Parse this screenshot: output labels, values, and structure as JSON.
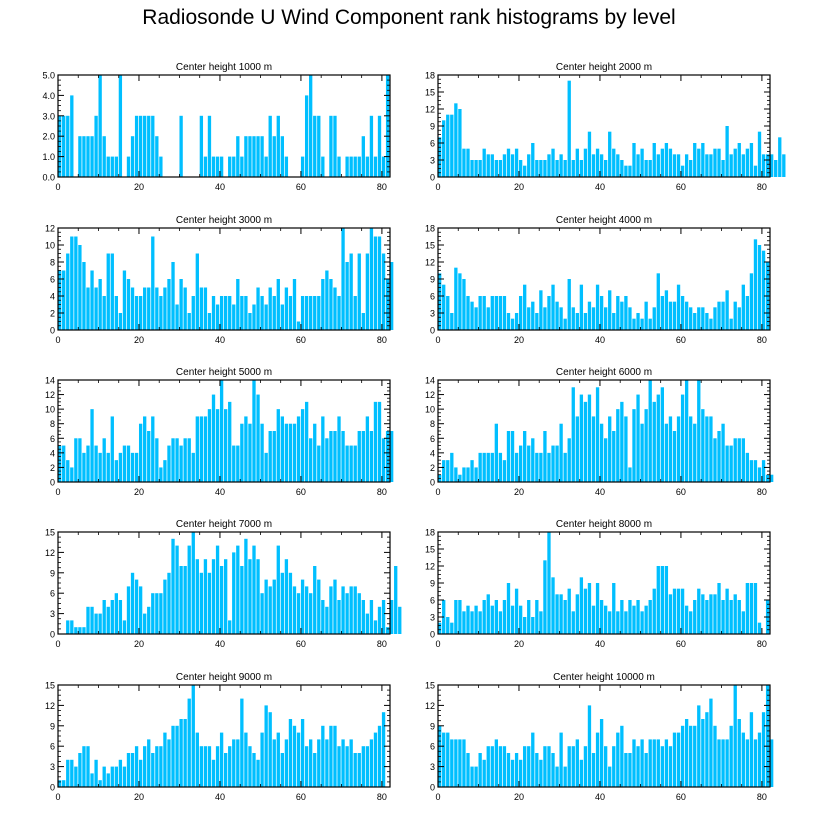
{
  "title": "Radiosonde U Wind Component rank histograms by level",
  "bar_color": "#00bfff",
  "chart_data": [
    {
      "type": "bar",
      "title": "Center height 1000 m",
      "xlim": [
        0,
        82
      ],
      "ylim": [
        0,
        5
      ],
      "yticks": [
        0,
        1,
        2,
        3,
        4,
        5
      ],
      "ytick_labels": [
        "0.0",
        "1.0",
        "2.0",
        "3.0",
        "4.0",
        "5.0"
      ],
      "xticks": [
        0,
        20,
        40,
        60,
        80
      ],
      "values": [
        3,
        3,
        3,
        4,
        0,
        2,
        2,
        2,
        2,
        3,
        5,
        2,
        1,
        1,
        1,
        5,
        0,
        1,
        2,
        3,
        3,
        3,
        3,
        3,
        2,
        1,
        0,
        0,
        0,
        0,
        3,
        0,
        0,
        0,
        0,
        3,
        1,
        3,
        1,
        1,
        1,
        0,
        1,
        1,
        2,
        1,
        2,
        2,
        2,
        2,
        2,
        1,
        3,
        2,
        3,
        2,
        1,
        0,
        0,
        0,
        1,
        4,
        5,
        3,
        3,
        1,
        0,
        3,
        3,
        1,
        0,
        1,
        1,
        1,
        1,
        2,
        1,
        3,
        1,
        3,
        1,
        5
      ]
    },
    {
      "type": "bar",
      "title": "Center height 2000 m",
      "xlim": [
        0,
        82
      ],
      "ylim": [
        0,
        18
      ],
      "yticks": [
        0,
        3,
        6,
        9,
        12,
        15,
        18
      ],
      "ytick_labels": [
        "0",
        "3",
        "6",
        "9",
        "12",
        "15",
        "18"
      ],
      "xticks": [
        0,
        20,
        40,
        60,
        80
      ],
      "values": [
        7,
        10,
        11,
        11,
        13,
        12,
        5,
        5,
        3,
        3,
        3,
        5,
        4,
        4,
        3,
        3,
        4,
        5,
        4,
        5,
        3,
        2,
        4,
        6,
        3,
        3,
        3,
        4,
        5,
        3,
        4,
        3,
        17,
        3,
        5,
        3,
        5,
        8,
        4,
        5,
        4,
        3,
        8,
        5,
        4,
        3,
        2,
        2,
        6,
        4,
        5,
        3,
        3,
        6,
        4,
        5,
        6,
        5,
        4,
        4,
        2,
        4,
        3,
        6,
        5,
        6,
        4,
        4,
        5,
        5,
        3,
        9,
        4,
        5,
        6,
        4,
        5,
        6,
        2,
        8,
        4,
        4,
        4,
        3,
        7,
        4
      ]
    },
    {
      "type": "bar",
      "title": "Center height 3000 m",
      "xlim": [
        0,
        82
      ],
      "ylim": [
        0,
        12
      ],
      "yticks": [
        0,
        2,
        4,
        6,
        8,
        10,
        12
      ],
      "ytick_labels": [
        "0",
        "2",
        "4",
        "6",
        "8",
        "10",
        "12"
      ],
      "xticks": [
        0,
        20,
        40,
        60,
        80
      ],
      "values": [
        7,
        7,
        9,
        11,
        11,
        10,
        8,
        5,
        7,
        5,
        6,
        4,
        9,
        9,
        4,
        2,
        7,
        6,
        5,
        4,
        4,
        5,
        5,
        11,
        5,
        4,
        5,
        6,
        8,
        3,
        6,
        5,
        2,
        4,
        9,
        5,
        5,
        2,
        4,
        3,
        4,
        4,
        4,
        3,
        6,
        4,
        4,
        2,
        3,
        5,
        4,
        3,
        5,
        4,
        6,
        3,
        5,
        4,
        6,
        1,
        4,
        4,
        4,
        4,
        4,
        6,
        7,
        6,
        5,
        4,
        12,
        8,
        9,
        4,
        9,
        2,
        9,
        12,
        11,
        11,
        9,
        6,
        8
      ]
    },
    {
      "type": "bar",
      "title": "Center height 4000 m",
      "xlim": [
        0,
        82
      ],
      "ylim": [
        0,
        18
      ],
      "yticks": [
        0,
        3,
        6,
        9,
        12,
        15,
        18
      ],
      "ytick_labels": [
        "0",
        "3",
        "6",
        "9",
        "12",
        "15",
        "18"
      ],
      "xticks": [
        0,
        20,
        40,
        60,
        80
      ],
      "values": [
        10,
        8,
        6,
        3,
        11,
        10,
        9,
        6,
        5,
        4,
        6,
        6,
        4,
        6,
        6,
        6,
        6,
        3,
        2,
        3,
        6,
        8,
        4,
        5,
        3,
        7,
        4,
        6,
        8,
        5,
        4,
        2,
        9,
        4,
        3,
        8,
        3,
        5,
        4,
        8,
        6,
        4,
        7,
        3,
        6,
        5,
        6,
        4,
        2,
        3,
        2,
        5,
        2,
        4,
        10,
        6,
        7,
        5,
        5,
        8,
        6,
        5,
        4,
        3,
        4,
        4,
        3,
        2,
        4,
        5,
        5,
        7,
        2,
        5,
        4,
        8,
        6,
        10,
        16,
        15,
        14,
        12
      ]
    },
    {
      "type": "bar",
      "title": "Center height 5000 m",
      "xlim": [
        0,
        82
      ],
      "ylim": [
        0,
        14
      ],
      "yticks": [
        0,
        2,
        4,
        6,
        8,
        10,
        12,
        14
      ],
      "ytick_labels": [
        "0",
        "2",
        "4",
        "6",
        "8",
        "10",
        "12",
        "14"
      ],
      "xticks": [
        0,
        20,
        40,
        60,
        80
      ],
      "values": [
        5,
        5,
        3,
        2,
        6,
        6,
        4,
        5,
        10,
        5,
        4,
        6,
        4,
        9,
        3,
        4,
        5,
        5,
        4,
        4,
        8,
        9,
        7,
        9,
        6,
        2,
        3,
        5,
        6,
        6,
        5,
        6,
        6,
        4,
        9,
        9,
        9,
        10,
        12,
        10,
        14,
        10,
        11,
        5,
        5,
        8,
        9,
        8,
        14,
        12,
        8,
        4,
        7,
        7,
        10,
        9,
        8,
        8,
        8,
        9,
        10,
        11,
        6,
        8,
        5,
        9,
        6,
        7,
        7,
        9,
        7,
        5,
        5,
        5,
        7,
        7,
        9,
        7,
        11,
        11,
        6,
        7,
        7
      ]
    },
    {
      "type": "bar",
      "title": "Center height 6000 m",
      "xlim": [
        0,
        82
      ],
      "ylim": [
        0,
        14
      ],
      "yticks": [
        0,
        2,
        4,
        6,
        8,
        10,
        12,
        14
      ],
      "ytick_labels": [
        "0",
        "2",
        "4",
        "6",
        "8",
        "10",
        "12",
        "14"
      ],
      "xticks": [
        0,
        20,
        40,
        60,
        80
      ],
      "values": [
        1,
        3,
        3,
        4,
        2,
        1,
        2,
        2,
        3,
        2,
        4,
        4,
        4,
        4,
        8,
        4,
        3,
        7,
        7,
        4,
        5,
        7,
        5,
        6,
        4,
        4,
        7,
        4,
        5,
        5,
        8,
        4,
        6,
        13,
        9,
        12,
        11,
        12,
        9,
        13,
        8,
        6,
        9,
        7,
        10,
        11,
        9,
        2,
        10,
        12,
        8,
        10,
        14,
        11,
        12,
        13,
        8,
        9,
        7,
        9,
        12,
        14,
        9,
        8,
        14,
        10,
        9,
        9,
        6,
        7,
        8,
        5,
        5,
        6,
        6,
        6,
        4,
        3,
        3,
        2,
        3,
        1,
        1
      ]
    },
    {
      "type": "bar",
      "title": "Center height 7000 m",
      "xlim": [
        0,
        82
      ],
      "ylim": [
        0,
        15
      ],
      "yticks": [
        0,
        3,
        6,
        9,
        12,
        15
      ],
      "ytick_labels": [
        "0",
        "3",
        "6",
        "9",
        "12",
        "15"
      ],
      "xticks": [
        0,
        20,
        40,
        60,
        80
      ],
      "values": [
        0,
        0,
        2,
        2,
        1,
        1,
        1,
        4,
        4,
        3,
        3,
        5,
        4,
        5,
        6,
        5,
        2,
        7,
        9,
        8,
        7,
        3,
        4,
        6,
        6,
        6,
        8,
        9,
        14,
        13,
        10,
        10,
        13,
        15,
        11,
        9,
        11,
        9,
        11,
        13,
        10,
        11,
        2,
        12,
        13,
        10,
        14,
        11,
        13,
        11,
        6,
        8,
        7,
        8,
        13,
        9,
        11,
        9,
        7,
        6,
        8,
        7,
        6,
        10,
        8,
        5,
        4,
        7,
        8,
        5,
        7,
        6,
        7,
        7,
        6,
        5,
        3,
        5,
        2,
        4,
        5,
        1,
        5,
        10,
        4
      ]
    },
    {
      "type": "bar",
      "title": "Center height 8000 m",
      "xlim": [
        0,
        82
      ],
      "ylim": [
        0,
        18
      ],
      "yticks": [
        0,
        3,
        6,
        9,
        12,
        15,
        18
      ],
      "ytick_labels": [
        "0",
        "3",
        "6",
        "9",
        "12",
        "15",
        "18"
      ],
      "xticks": [
        0,
        20,
        40,
        60,
        80
      ],
      "values": [
        2,
        6,
        3,
        2,
        6,
        6,
        4,
        5,
        4,
        5,
        4,
        6,
        7,
        5,
        6,
        4,
        6,
        9,
        5,
        8,
        5,
        3,
        6,
        3,
        6,
        4,
        13,
        18,
        10,
        7,
        7,
        6,
        8,
        4,
        7,
        10,
        8,
        9,
        5,
        9,
        6,
        5,
        4,
        9,
        4,
        6,
        4,
        6,
        5,
        6,
        4,
        5,
        6,
        8,
        12,
        12,
        12,
        7,
        8,
        8,
        8,
        5,
        4,
        6,
        8,
        7,
        6,
        7,
        7,
        9,
        6,
        8,
        6,
        7,
        6,
        4,
        9,
        9,
        9,
        2,
        0,
        6
      ]
    },
    {
      "type": "bar",
      "title": "Center height 9000 m",
      "xlim": [
        0,
        82
      ],
      "ylim": [
        0,
        15
      ],
      "yticks": [
        0,
        3,
        6,
        9,
        12,
        15
      ],
      "ytick_labels": [
        "0",
        "3",
        "6",
        "9",
        "12",
        "15"
      ],
      "xticks": [
        0,
        20,
        40,
        60,
        80
      ],
      "values": [
        1,
        1,
        4,
        4,
        3,
        5,
        6,
        6,
        2,
        4,
        1,
        3,
        2,
        3,
        3,
        4,
        3,
        5,
        5,
        6,
        4,
        6,
        7,
        5,
        6,
        6,
        8,
        7,
        9,
        9,
        10,
        10,
        13,
        15,
        8,
        6,
        6,
        6,
        4,
        6,
        8,
        5,
        6,
        7,
        7,
        13,
        8,
        6,
        5,
        4,
        8,
        12,
        11,
        7,
        8,
        5,
        7,
        10,
        9,
        8,
        10,
        6,
        7,
        5,
        7,
        9,
        7,
        9,
        9,
        6,
        7,
        6,
        7,
        5,
        5,
        6,
        6,
        7,
        8,
        9,
        11
      ]
    },
    {
      "type": "bar",
      "title": "Center height 10000 m",
      "xlim": [
        0,
        82
      ],
      "ylim": [
        0,
        15
      ],
      "yticks": [
        0,
        3,
        6,
        9,
        12,
        15
      ],
      "ytick_labels": [
        "0",
        "3",
        "6",
        "9",
        "12",
        "15"
      ],
      "xticks": [
        0,
        20,
        40,
        60,
        80
      ],
      "values": [
        9,
        8,
        8,
        7,
        7,
        7,
        7,
        5,
        3,
        3,
        5,
        4,
        6,
        6,
        7,
        6,
        6,
        5,
        4,
        5,
        4,
        6,
        6,
        8,
        5,
        4,
        6,
        6,
        5,
        3,
        8,
        3,
        6,
        6,
        7,
        4,
        6,
        12,
        5,
        8,
        10,
        6,
        3,
        6,
        8,
        9,
        5,
        5,
        7,
        6,
        7,
        5,
        7,
        7,
        7,
        6,
        7,
        6,
        8,
        8,
        9,
        10,
        9,
        9,
        12,
        10,
        11,
        13,
        9,
        7,
        7,
        7,
        9,
        15,
        10,
        8,
        7,
        11,
        7,
        8,
        11,
        15,
        7
      ]
    }
  ]
}
